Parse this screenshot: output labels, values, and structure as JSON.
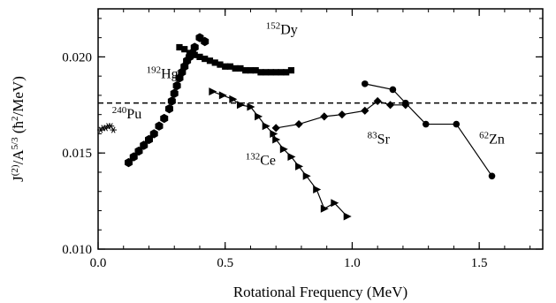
{
  "chart_data": {
    "type": "scatter",
    "xlabel": "Rotational Frequency (MeV)",
    "ylabel": "J(2)/A5/3 (ħ2/MeV)",
    "ylabel_parts": {
      "j": "J",
      "j_sup": "(2)",
      "a": "/A",
      "a_sup": "5/3",
      "unit_open": " (ħ",
      "unit_sup": "2",
      "unit_close": "/MeV)"
    },
    "xlim": [
      0.0,
      1.75
    ],
    "ylim": [
      0.01,
      0.0225
    ],
    "xticks": [
      "0.0",
      "0.5",
      "1.0",
      "1.5"
    ],
    "yticks": [
      "0.010",
      "0.015",
      "0.020"
    ],
    "reference_line_y": 0.0176,
    "series": [
      {
        "name": "192Hg",
        "marker": "hexagon",
        "connected": false,
        "x": [
          0.12,
          0.14,
          0.16,
          0.18,
          0.2,
          0.22,
          0.24,
          0.26,
          0.28,
          0.29,
          0.3,
          0.31,
          0.32,
          0.33,
          0.34,
          0.35,
          0.36,
          0.37,
          0.38,
          0.4,
          0.42
        ],
        "y": [
          0.0145,
          0.0148,
          0.0151,
          0.0154,
          0.0157,
          0.016,
          0.0164,
          0.0168,
          0.0173,
          0.0177,
          0.0181,
          0.0185,
          0.0189,
          0.0192,
          0.0195,
          0.0198,
          0.02,
          0.0202,
          0.0205,
          0.021,
          0.0208
        ]
      },
      {
        "name": "152Dy",
        "marker": "square",
        "connected": false,
        "x": [
          0.32,
          0.34,
          0.36,
          0.38,
          0.4,
          0.42,
          0.44,
          0.46,
          0.48,
          0.5,
          0.52,
          0.54,
          0.56,
          0.58,
          0.6,
          0.62,
          0.64,
          0.66,
          0.68,
          0.7,
          0.72,
          0.74,
          0.76
        ],
        "y": [
          0.0205,
          0.0204,
          0.0202,
          0.0201,
          0.02,
          0.0199,
          0.0198,
          0.0197,
          0.0196,
          0.0195,
          0.0195,
          0.0194,
          0.0194,
          0.0193,
          0.0193,
          0.0193,
          0.0192,
          0.0192,
          0.0192,
          0.0192,
          0.0192,
          0.0192,
          0.0193
        ]
      },
      {
        "name": "132Ce",
        "marker": "triangle-right",
        "connected": true,
        "x": [
          0.45,
          0.49,
          0.53,
          0.56,
          0.6,
          0.63,
          0.66,
          0.69,
          0.7,
          0.73,
          0.76,
          0.79,
          0.82,
          0.86,
          0.89,
          0.93,
          0.98
        ],
        "y": [
          0.0182,
          0.018,
          0.0178,
          0.0175,
          0.0174,
          0.0169,
          0.0164,
          0.016,
          0.0157,
          0.0152,
          0.0148,
          0.0143,
          0.0138,
          0.0131,
          0.0121,
          0.0124,
          0.0117
        ]
      },
      {
        "name": "240Pu",
        "marker": "asterisk",
        "connected": false,
        "x": [
          0.01,
          0.02,
          0.03,
          0.04,
          0.05,
          0.06
        ],
        "y": [
          0.0162,
          0.0163,
          0.0163,
          0.0164,
          0.0164,
          0.0162
        ]
      },
      {
        "name": "83Sr",
        "marker": "diamond",
        "connected": true,
        "x": [
          0.7,
          0.79,
          0.89,
          0.96,
          1.05,
          1.1,
          1.15,
          1.21
        ],
        "y": [
          0.0163,
          0.0165,
          0.0169,
          0.017,
          0.0172,
          0.0177,
          0.0175,
          0.0175
        ]
      },
      {
        "name": "62Zn",
        "marker": "circle",
        "connected": true,
        "x": [
          1.05,
          1.16,
          1.21,
          1.29,
          1.41,
          1.55
        ],
        "y": [
          0.0186,
          0.0183,
          0.0176,
          0.0165,
          0.0165,
          0.0138
        ]
      }
    ],
    "annotations": [
      {
        "mass": "152",
        "element": "Dy",
        "x": 0.66,
        "y": 0.0212
      },
      {
        "mass": "192",
        "element": "Hg",
        "x": 0.19,
        "y": 0.0189
      },
      {
        "mass": "240",
        "element": "Pu",
        "x": 0.055,
        "y": 0.0168
      },
      {
        "mass": "132",
        "element": "Ce",
        "x": 0.58,
        "y": 0.0144
      },
      {
        "mass": "83",
        "element": "Sr",
        "x": 1.06,
        "y": 0.0155
      },
      {
        "mass": "62",
        "element": "Zn",
        "x": 1.5,
        "y": 0.0155
      }
    ]
  }
}
